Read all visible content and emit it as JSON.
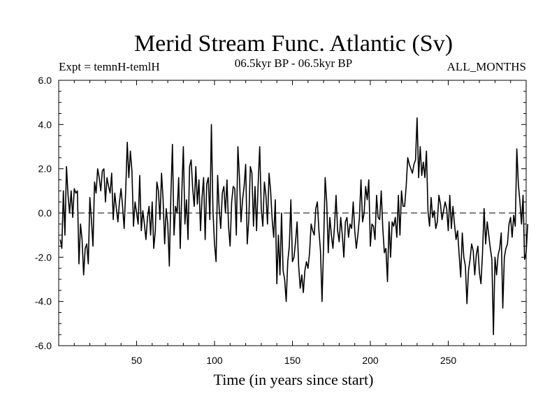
{
  "chart_data": {
    "type": "line",
    "title": "Merid Stream Func. Atlantic (Sv)",
    "subtitle_left": "Expt = temnH-temlH",
    "subtitle_center": "06.5kyr BP - 06.5kyr BP",
    "subtitle_right": "ALL_MONTHS",
    "xlabel": "Time (in years since start)",
    "ylabel": "",
    "xlim": [
      0,
      300
    ],
    "ylim": [
      -6.0,
      6.0
    ],
    "x_ticks": [
      50,
      100,
      150,
      200,
      250
    ],
    "y_ticks": [
      "-6.0",
      "-4.0",
      "-2.0",
      "0.0",
      "2.0",
      "4.0",
      "6.0"
    ],
    "reference_line": {
      "y": 0.0,
      "style": "dashed"
    },
    "series": [
      {
        "name": "Merid Stream Func. Atlantic",
        "x_start": 1,
        "x_step": 1,
        "values": [
          -1.2,
          -1.6,
          1.0,
          -1.0,
          2.1,
          0.8,
          0.0,
          1.0,
          -0.2,
          1.1,
          0.9,
          1.0,
          -2.3,
          -0.5,
          -1.2,
          -2.8,
          -1.6,
          -1.4,
          -2.3,
          0.7,
          -0.3,
          -1.5,
          1.4,
          0.9,
          2.0,
          1.6,
          1.0,
          1.9,
          2.0,
          0.5,
          1.6,
          1.2,
          0.9,
          1.8,
          -0.3,
          0.9,
          0.2,
          -0.4,
          0.5,
          1.1,
          0.3,
          -0.7,
          1.0,
          3.2,
          1.6,
          2.8,
          1.9,
          -0.6,
          0.5,
          0.0,
          -0.5,
          1.7,
          -0.8,
          0.1,
          -0.5,
          -1.2,
          -0.2,
          0.3,
          -1.0,
          0.5,
          -1.6,
          -0.8,
          1.4,
          1.0,
          -0.3,
          1.8,
          0.6,
          -1.4,
          0.2,
          -0.5,
          -2.4,
          0.8,
          3.1,
          -1.0,
          0.3,
          0.0,
          1.6,
          -1.6,
          0.9,
          3.0,
          -0.5,
          0.6,
          -1.2,
          2.1,
          2.4,
          1.1,
          0.3,
          2.1,
          0.4,
          1.5,
          -0.8,
          0.7,
          1.6,
          -1.2,
          1.3,
          1.6,
          -0.3,
          4.0,
          0.1,
          -1.4,
          -2.2,
          1.7,
          0.2,
          -0.7,
          0.9,
          1.2,
          0.0,
          1.5,
          -0.6,
          -1.5,
          0.5,
          1.2,
          1.1,
          -1.0,
          3.0,
          1.6,
          -0.4,
          0.6,
          1.2,
          2.2,
          -1.4,
          -0.3,
          2.1,
          1.8,
          -0.6,
          1.2,
          -0.8,
          1.3,
          3.0,
          0.2,
          -0.6,
          1.4,
          0.8,
          -0.5,
          1.8,
          1.0,
          -0.3,
          -1.1,
          0.6,
          -3.2,
          -1.0,
          -2.8,
          0.0,
          -2.6,
          -3.0,
          -4.0,
          -2.2,
          -1.5,
          0.6,
          -2.2,
          -2.0,
          -1.3,
          -0.4,
          -2.4,
          -3.4,
          -2.8,
          -3.6,
          -2.6,
          -2.2,
          -2.5,
          -1.8,
          -0.5,
          -0.8,
          -1.0,
          0.2,
          0.5,
          -0.8,
          -1.7,
          -4.0,
          -1.5,
          1.6,
          0.5,
          -1.8,
          -0.2,
          -1.0,
          -1.6,
          -0.6,
          0.8,
          -0.8,
          -1.3,
          -0.2,
          -1.0,
          -2.0,
          -0.4,
          -0.2,
          -1.1,
          -0.5,
          -0.7,
          0.5,
          -0.8,
          -1.6,
          -1.0,
          -0.2,
          1.5,
          -0.4,
          0.0,
          1.2,
          0.6,
          1.5,
          -1.5,
          -0.5,
          -0.6,
          -1.2,
          0.8,
          -0.2,
          -0.3,
          1.0,
          -0.7,
          -1.8,
          -1.6,
          -3.1,
          -0.4,
          -2.0,
          -0.4,
          -0.6,
          -0.2,
          -1.1,
          0.8,
          -1.0,
          1.0,
          0.3,
          0.3,
          1.2,
          2.5,
          2.2,
          2.0,
          1.8,
          2.2,
          2.4,
          4.3,
          1.6,
          3.0,
          1.7,
          2.3,
          1.6,
          2.8,
          0.1,
          -0.6,
          0.7,
          -0.2,
          0.1,
          -0.7,
          -0.4,
          0.8,
          0.4,
          -0.3,
          0.1,
          0.5,
          0.2,
          -0.8,
          0.8,
          -0.7,
          0.3,
          -0.5,
          -1.2,
          -0.8,
          -1.9,
          -2.9,
          -0.9,
          -2.0,
          -2.4,
          -4.1,
          -2.6,
          -2.1,
          -1.4,
          -1.7,
          -2.8,
          -1.9,
          -1.5,
          -2.7,
          -3.2,
          -1.8,
          0.2,
          -1.4,
          -0.4,
          -1.0,
          -1.6,
          -2.1,
          -5.5,
          -2.0,
          -2.8,
          -1.9,
          -1.6,
          -0.9,
          -4.3,
          -2.0,
          -1.6,
          -1.4,
          -0.5,
          -0.2,
          -1.1,
          -0.1,
          -0.6,
          2.9,
          1.3,
          0.5,
          -0.5,
          0.8,
          -2.1,
          -1.8,
          -0.5
        ]
      }
    ]
  }
}
